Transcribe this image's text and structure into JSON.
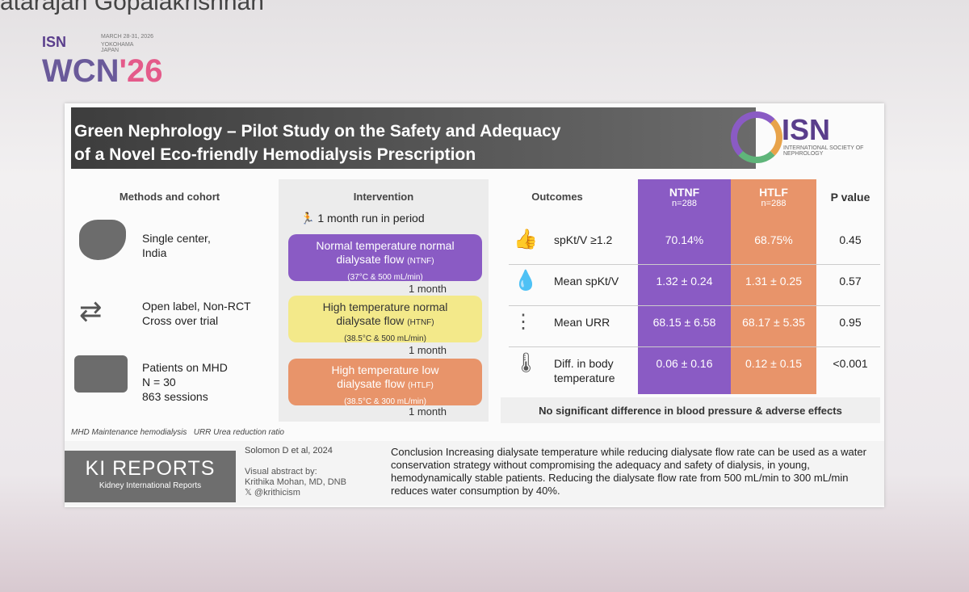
{
  "speaker": "atarajan Gopalakrishnan",
  "event": {
    "logo": "ISN",
    "dates": "MARCH 28-31, 2026",
    "place": "YOKOHAMA JAPAN",
    "name": "WCN",
    "year": "'26"
  },
  "header": {
    "title_line1": "Green Nephrology – Pilot Study on the Safety and Adequacy",
    "title_line2": "of a Novel Eco-friendly Hemodialysis Prescription",
    "logo": "ISN",
    "logo_sub": "INTERNATIONAL SOCIETY OF NEPHROLOGY"
  },
  "methods": {
    "heading": "Methods and cohort",
    "items": [
      [
        "Single center,",
        "India"
      ],
      [
        "Open label, Non-RCT",
        "Cross over trial"
      ],
      [
        "Patients on MHD",
        "N = 30",
        "863 sessions"
      ]
    ]
  },
  "intervention": {
    "heading": "Intervention",
    "run_in": "1 month run in period",
    "phases": [
      {
        "title": "Normal temperature normal",
        "title2": "dialysate flow",
        "code": "(NTNF)",
        "detail": "(37°C & 500 mL/min)",
        "duration": "1 month"
      },
      {
        "title": "High temperature normal",
        "title2": "dialysate flow",
        "code": "(HTNF)",
        "detail": "(38.5°C & 500 mL/min)",
        "duration": "1 month"
      },
      {
        "title": "High temperature low",
        "title2": "dialysate flow",
        "code": "(HTLF)",
        "detail": "(38.5°C & 300 mL/min)",
        "duration": "1 month"
      }
    ]
  },
  "outcomes": {
    "heading": "Outcomes",
    "columns": [
      {
        "name": "NTNF",
        "n": "n=288"
      },
      {
        "name": "HTLF",
        "n": "n=288"
      },
      {
        "name": "P value"
      }
    ],
    "rows": [
      [
        "spKt/V ≥1.2",
        "70.14%",
        "68.75%",
        "0.45"
      ],
      [
        "Mean spKt/V",
        "1.32 ± 0.24",
        "1.31 ± 0.25",
        "0.57"
      ],
      [
        "Mean URR",
        "68.15 ± 6.58",
        "68.17 ± 5.35",
        "0.95"
      ],
      [
        "Diff. in body temperature",
        "0.06 ± 0.16",
        "0.12 ± 0.15",
        "<0.001"
      ]
    ],
    "note": "No significant difference in blood pressure & adverse effects"
  },
  "footnote": "MHD Maintenance hemodialysis   URR Urea reduction ratio",
  "footer": {
    "citation": "Solomon D et al, 2024",
    "journal": "KI REPORTS",
    "journal_sub": "Kidney International Reports",
    "credit1": "Visual abstract by:",
    "credit2": "Krithika Mohan, MD, DNB",
    "handle": "@krithicism",
    "conclusion": "Conclusion Increasing dialysate temperature while reducing dialysate flow rate can be used as a water conservation strategy without compromising the adequacy and safety of dialysis, in young, hemodynamically stable patients. Reducing the dialysate flow rate from 500 mL/min to 300 mL/min reduces water consumption by 40%."
  }
}
